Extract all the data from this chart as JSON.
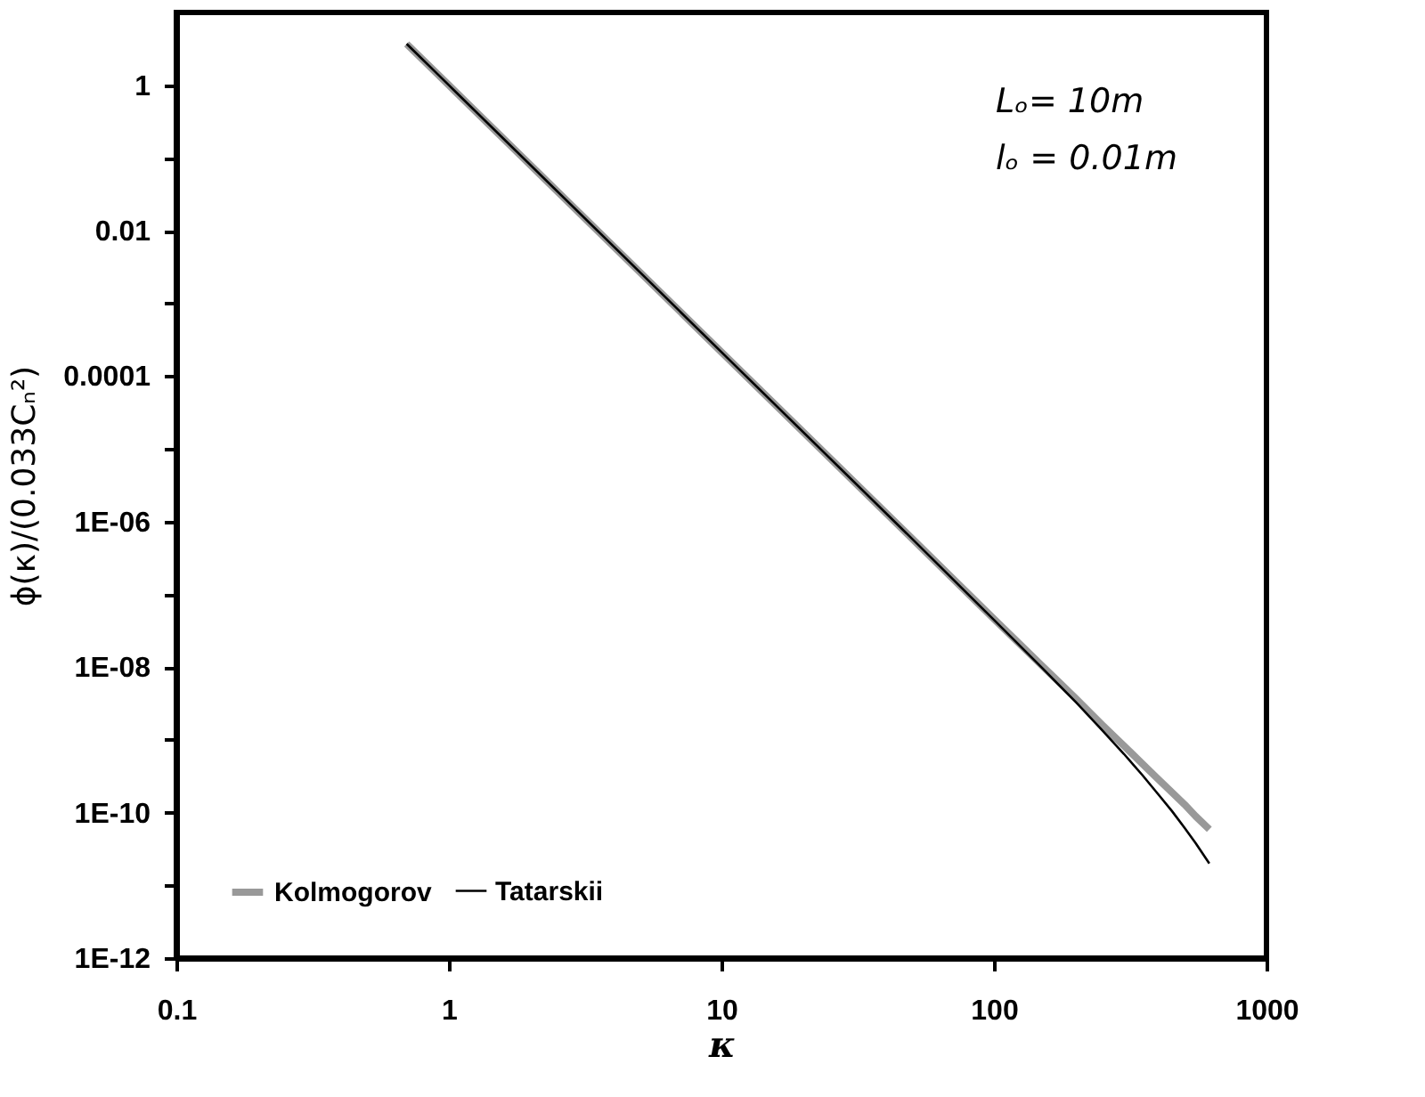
{
  "chart_data": {
    "type": "line",
    "xlabel": "κ",
    "ylabel": "ϕ(κ)/(0.033Cₙ²)",
    "log": "xy",
    "xlim": [
      0.1,
      1000
    ],
    "ylim": [
      1e-12,
      10
    ],
    "xticks": [
      0.1,
      1,
      10,
      100,
      1000
    ],
    "yticks": [
      {
        "value": 1e-12,
        "label": "1E-12"
      },
      {
        "value": 1e-11,
        "label": null
      },
      {
        "value": 1e-10,
        "label": "1E-10"
      },
      {
        "value": 1e-09,
        "label": null
      },
      {
        "value": 1e-08,
        "label": "1E-08"
      },
      {
        "value": 1e-07,
        "label": null
      },
      {
        "value": 1e-06,
        "label": "1E-06"
      },
      {
        "value": 1e-05,
        "label": null
      },
      0.0001,
      {
        "value": 0.001,
        "label": null
      },
      0.01,
      {
        "value": 0.1,
        "label": null
      },
      1
    ],
    "grid": false,
    "legend": "bottom left",
    "marker": "none",
    "line_style": "solid",
    "annotations": [
      "Lₒ=     10m",
      "lₒ  =  0.01m"
    ],
    "series": [
      {
        "name": "Kolmogorov",
        "color": "#999999",
        "x": [
          0.7,
          1,
          10,
          50,
          100,
          150,
          200,
          250,
          300,
          350,
          400,
          450,
          500,
          550,
          617
        ],
        "values": [
          3.7,
          1,
          0.000215,
          5.9e-07,
          4.6e-08,
          1.05e-08,
          3.7e-09,
          1.6e-09,
          8.3e-10,
          4.7e-10,
          2.9e-10,
          1.9e-10,
          1.3e-10,
          8.9e-11,
          5.9e-11
        ]
      },
      {
        "name": "Tatarskii",
        "color": "#000000",
        "x": [
          0.7,
          1,
          10,
          50,
          100,
          150,
          200,
          250,
          300,
          350,
          400,
          450,
          500,
          550,
          617
        ],
        "values": [
          3.7,
          1,
          0.000215,
          5.85e-07,
          4.47e-08,
          9.8e-09,
          3.3e-09,
          1.35e-09,
          6.4e-10,
          3.3e-10,
          1.8e-10,
          1.05e-10,
          6.2e-11,
          3.8e-11,
          2e-11
        ]
      }
    ]
  }
}
